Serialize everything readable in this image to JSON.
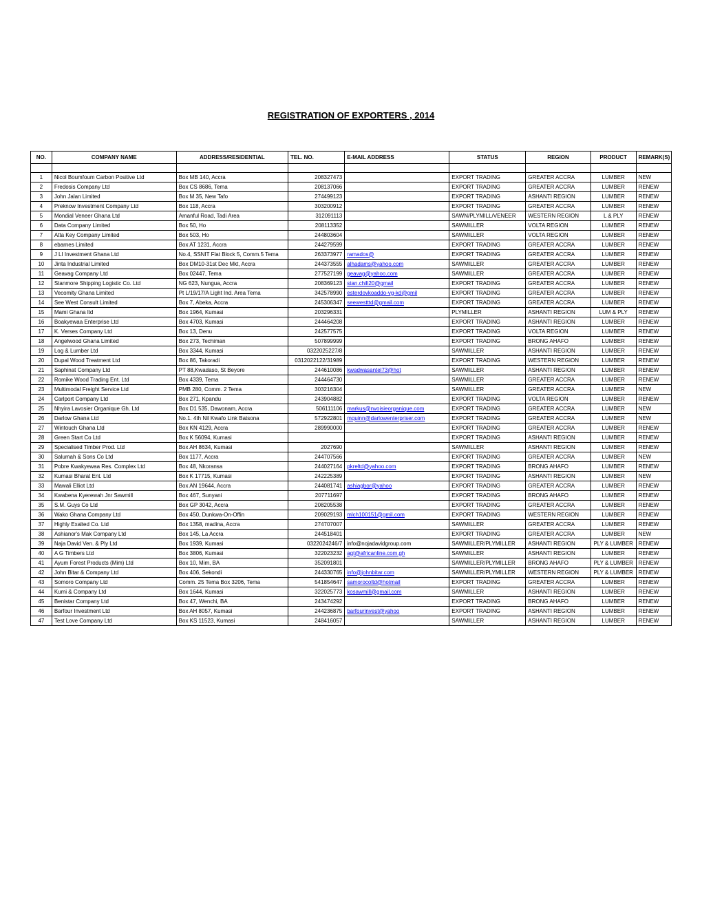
{
  "title": "REGISTRATION OF EXPORTERS , 2014",
  "columns": {
    "no": "NO.",
    "company": "COMPANY NAME",
    "address": "ADDRESS/RESIDENTIAL",
    "tel": "TEL. NO.",
    "email": "E-MAIL ADDRESS",
    "status": "STATUS",
    "region": "REGION",
    "product": "PRODUCT",
    "remarks": "REMARK(S)"
  },
  "rows": [
    {
      "no": "1",
      "company": "Nicol Boumfoum Carbon Positive Ltd",
      "address": "Box MB 140, Accra",
      "tel": "208327473",
      "email": "",
      "status": "EXPORT TRADING",
      "region": "GREATER ACCRA",
      "product": "LUMBER",
      "remarks": "NEW"
    },
    {
      "no": "2",
      "company": "Fredosis Company Ltd",
      "address": "Box CS 8686, Tema",
      "tel": "208137066",
      "email": "",
      "status": "EXPORT TRADING",
      "region": "GREATER ACCRA",
      "product": "LUMBER",
      "remarks": "RENEW"
    },
    {
      "no": "3",
      "company": "John Jalan Limited",
      "address": "Box M 35, New Tafo",
      "tel": "274499123",
      "email": "",
      "status": "EXPORT TRADING",
      "region": "ASHANTI REGION",
      "product": "LUMBER",
      "remarks": "RENEW"
    },
    {
      "no": "4",
      "company": "Preknow Investment Company Ltd",
      "address": "Box 118, Accra",
      "tel": "303200912",
      "email": "",
      "status": "EXPORT TRADING",
      "region": "GREATER ACCRA",
      "product": "LUMBER",
      "remarks": "RENEW"
    },
    {
      "no": "5",
      "company": "Mondial Veneer Ghana Ltd",
      "address": "Amanful Road, Tadi Area",
      "tel": "312091113",
      "email": "",
      "status": "SAWN/PLYMILL/VENEER",
      "region": "WESTERN REGION",
      "product": "L & PLY",
      "remarks": "RENEW"
    },
    {
      "no": "6",
      "company": "Data Company Limited",
      "address": "Box 50, Ho",
      "tel": "208113352",
      "email": "",
      "status": "SAWMILLER",
      "region": "VOLTA REGION",
      "product": "LUMBER",
      "remarks": "RENEW"
    },
    {
      "no": "7",
      "company": "Atta Key Company Limited",
      "address": "Box 503, Ho",
      "tel": "244803604",
      "email": "",
      "status": "SAWMILLER",
      "region": "VOLTA REGION",
      "product": "LUMBER",
      "remarks": "RENEW"
    },
    {
      "no": "8",
      "company": "ebarnes Limited",
      "address": "Box AT 1231, Accra",
      "tel": "244279599",
      "email": "",
      "status": "EXPORT TRADING",
      "region": "GREATER ACCRA",
      "product": "LUMBER",
      "remarks": "RENEW"
    },
    {
      "no": "9",
      "company": "J LI  Investment Ghana Ltd",
      "address": "No.4, SSNIT Flat Block 5, Comm.5 Tema",
      "tel": "263373977",
      "email": "ramados@",
      "email_link": true,
      "status": "EXPORT TRADING",
      "region": "GREATER ACCRA",
      "product": "LUMBER",
      "remarks": "RENEW"
    },
    {
      "no": "10",
      "company": "Jinta Industrial Limited",
      "address": "Box DM10-31st Dec Mkt, Accra",
      "tel": "244373555",
      "email": "alhadams@yahoo.com",
      "email_link": true,
      "status": "SAWMILLER",
      "region": "GREATER ACCRA",
      "product": "LUMBER",
      "remarks": "RENEW"
    },
    {
      "no": "11",
      "company": "Geavag Company Ltd",
      "address": "Box 02447, Tema",
      "tel": "277527199",
      "email": "geavag@yahoo.com",
      "email_link": true,
      "status": "SAWMILLER",
      "region": "GREATER ACCRA",
      "product": "LUMBER",
      "remarks": "RENEW"
    },
    {
      "no": "12",
      "company": "Stanmore Shipping Logistic Co. Ltd",
      "address": "NG 623, Nungua, Accra",
      "tel": "208369123",
      "email": "stan.chill20@gmail",
      "email_link": true,
      "status": "EXPORT TRADING",
      "region": "GREATER ACCRA",
      "product": "LUMBER",
      "remarks": "RENEW"
    },
    {
      "no": "13",
      "company": "Vecomity Ghana Limited",
      "address": "Pt L/19/17/A Light Ind. Area Tema",
      "tel": "342578990",
      "email": "esterdovkoaddo-vg-kd@gmil",
      "email_link": true,
      "status": "EXPORT TRADING",
      "region": "GREATER ACCRA",
      "product": "LUMBER",
      "remarks": "RENEW"
    },
    {
      "no": "14",
      "company": "See West Consult Limited",
      "address": "Box 7, Abeka, Accra",
      "tel": "245306347",
      "email": "seewestttd@gmail.com",
      "email_link": true,
      "status": "EXPORT TRADING",
      "region": "GREATER ACCRA",
      "product": "LUMBER",
      "remarks": "RENEW"
    },
    {
      "no": "15",
      "company": "Mami Ghana ltd",
      "address": "Box 1964, Kumasi",
      "tel": "203296331",
      "email": "",
      "status": "PLYMILLER",
      "region": "ASHANTI REGION",
      "product": "LUM & PLY",
      "remarks": "RENEW"
    },
    {
      "no": "16",
      "company": "Boakyewaa Enterprise Ltd",
      "address": "Box 4703, Kumasi",
      "tel": "244464208",
      "email": "",
      "status": "EXPORT TRADING",
      "region": "ASHANTI REGION",
      "product": "LUMBER",
      "remarks": "RENEW"
    },
    {
      "no": "17",
      "company": "K. Verses Company Ltd",
      "address": "Box 13, Denu",
      "tel": "242577575",
      "email": "",
      "status": "EXPORT TRADING",
      "region": "VOLTA REGION",
      "product": "LUMBER",
      "remarks": "RENEW"
    },
    {
      "no": "18",
      "company": "Angelwood Ghana Limited",
      "address": "Box 273, Techiman",
      "tel": "507899999",
      "email": "",
      "status": "EXPORT TRADING",
      "region": "BRONG AHAFO",
      "product": "LUMBER",
      "remarks": "RENEW"
    },
    {
      "no": "19",
      "company": "Log & Lumber Ltd",
      "address": "Box 3344, Kumasi",
      "tel": "0322025227/8",
      "email": "",
      "status": "SAWMILLER",
      "region": "ASHANTI REGION",
      "product": "LUMBER",
      "remarks": "RENEW"
    },
    {
      "no": "20",
      "company": "Dupal Wood Treatment Ltd",
      "address": "Box 86, Takoradi",
      "tel": "0312022122/31989",
      "email": "",
      "status": "EXPORT TRADING",
      "region": "WESTERN REGION",
      "product": "LUMBER",
      "remarks": "RENEW"
    },
    {
      "no": "21",
      "company": "Saphinat Company Ltd",
      "address": "PT 88,Kwadaso, St Beyore",
      "tel": "244610086",
      "email": "kwadwasantel73@hot",
      "email_link": true,
      "status": "SAWMILLER",
      "region": "ASHANTI REGION",
      "product": "LUMBER",
      "remarks": "RENEW"
    },
    {
      "no": "22",
      "company": "Romike Wood Trading Ent. Ltd",
      "address": "Box 4339, Tema",
      "tel": "244464730",
      "email": "",
      "status": "SAWMILLER",
      "region": "GREATER ACCRA",
      "product": "LUMBER",
      "remarks": "RENEW"
    },
    {
      "no": "23",
      "company": "Multimodal Freight Service Ltd",
      "address": "PMB 280, Comm. 2 Tema",
      "tel": "303216304",
      "email": "",
      "status": "SAWMILLER",
      "region": "GREATER ACCRA",
      "product": "LUMBER",
      "remarks": "NEW"
    },
    {
      "no": "24",
      "company": "Carlport Company Ltd",
      "address": "Box 271, Kpandu",
      "tel": "243904882",
      "email": "",
      "status": "EXPORT TRADING",
      "region": "VOLTA REGION",
      "product": "LUMBER",
      "remarks": "RENEW"
    },
    {
      "no": "25",
      "company": "Nhyira Lavosier Organique Gh. Ltd",
      "address": "Box D1 535, Dawonam, Accra",
      "tel": "506111106",
      "email": "markus@nvoisieorganique.com",
      "email_link": true,
      "status": "EXPORT TRADING",
      "region": "GREATER ACCRA",
      "product": "LUMBER",
      "remarks": "NEW"
    },
    {
      "no": "26",
      "company": "Darlow Ghana Ltd",
      "address": "No.1. 4th Nil Kwafo Link Batsona",
      "tel": "572922801",
      "email": "mquinn@darlowenterpriser.com",
      "email_link": true,
      "status": "EXPORT TRADING",
      "region": "GREATER ACCRA",
      "product": "LUMBER",
      "remarks": "NEW"
    },
    {
      "no": "27",
      "company": "Wintouch Ghana Ltd",
      "address": "Box KN 4129, Accra",
      "tel": "289990000",
      "email": "",
      "status": "EXPORT TRADING",
      "region": "GREATER ACCRA",
      "product": "LUMBER",
      "remarks": "RENEW"
    },
    {
      "no": "28",
      "company": "Green Start Co Ltd",
      "address": "Box K 56094, Kumasi",
      "tel": "",
      "email": "",
      "status": "EXPORT TRADING",
      "region": "ASHANTI REGION",
      "product": "LUMBER",
      "remarks": "RENEW"
    },
    {
      "no": "29",
      "company": "Specialised Timber Prod. Ltd",
      "address": "Box AH 8634, Kumasi",
      "tel": "2027690",
      "email": "",
      "status": "SAWMILLER",
      "region": "ASHANTI REGION",
      "product": "LUMBER",
      "remarks": "RENEW"
    },
    {
      "no": "30",
      "company": "Salumah & Sons Co Ltd",
      "address": "Box 1177, Accra",
      "tel": "244707566",
      "email": "",
      "status": "EXPORT TRADING",
      "region": "GREATER ACCRA",
      "product": "LUMBER",
      "remarks": "NEW"
    },
    {
      "no": "31",
      "company": "Pobre Kwakyewaa Res. Complex Ltd",
      "address": "Box 48, Nkoransa",
      "tel": "244027164",
      "email": "pkreltd@yahoo.com",
      "email_link": true,
      "status": "EXPORT TRADING",
      "region": "BRONG AHAFO",
      "product": "LUMBER",
      "remarks": "RENEW"
    },
    {
      "no": "32",
      "company": "Kumasi Bharat Ent. Ltd",
      "address": "Box K 17715, Kumasi",
      "tel": "242225389",
      "email": "",
      "status": "EXPORT TRADING",
      "region": "ASHANTI REGION",
      "product": "LUMBER",
      "remarks": "NEW"
    },
    {
      "no": "33",
      "company": "Mawali Elliot Ltd",
      "address": "Box AN 19644, Accra",
      "tel": "244081741",
      "email": "ashiagbor@yahoo",
      "email_link": true,
      "status": "EXPORT TRADING",
      "region": "GREATER ACCRA",
      "product": "LUMBER",
      "remarks": "RENEW"
    },
    {
      "no": "34",
      "company": "Kwabena Kyerewah Jnr Sawmill",
      "address": "Box 467, Sunyani",
      "tel": "207711697",
      "email": "",
      "status": "EXPORT TRADING",
      "region": "BRONG AHAFO",
      "product": "LUMBER",
      "remarks": "RENEW"
    },
    {
      "no": "35",
      "company": "S.M. Guys Co Ltd",
      "address": "Box GP 3042, Accra",
      "tel": "208205538",
      "email": "",
      "status": "EXPORT TRADING",
      "region": "GREATER ACCRA",
      "product": "LUMBER",
      "remarks": "RENEW"
    },
    {
      "no": "36",
      "company": "Wako Ghana Company Ltd",
      "address": "Box 450, Dunkwa-On-Offin",
      "tel": "209029193",
      "email": "mlch100151@gmil.com",
      "email_link": true,
      "status": "EXPORT TRADING",
      "region": "WESTERN REGION",
      "product": "LUMBER",
      "remarks": "RENEW"
    },
    {
      "no": "37",
      "company": "Highly Exalted Co. Ltd",
      "address": "Box 1358, madina, Accra",
      "tel": "274707007",
      "email": "",
      "status": "SAWMILLER",
      "region": "GREATER ACCRA",
      "product": "LUMBER",
      "remarks": "RENEW"
    },
    {
      "no": "38",
      "company": "Ashianor's Mak Company Ltd",
      "address": "Box 145, La Accra",
      "tel": "244518401",
      "email": "",
      "status": "EXPORT TRADING",
      "region": "GREATER ACCRA",
      "product": "LUMBER",
      "remarks": "NEW"
    },
    {
      "no": "39",
      "company": "Naja David Ven. & Ply Ltd",
      "address": "Box 1939, Kumasi",
      "tel": "0322024246/7",
      "email": "info@nojadavidgroup.com",
      "status": "SAWMILLER/PLYMILLER",
      "region": "ASHANTI REGION",
      "product": "PLY & LUMBER",
      "remarks": "RENEW"
    },
    {
      "no": "40",
      "company": "A G Timbers Ltd",
      "address": "Box 3806, Kumasi",
      "tel": "322023232",
      "email": "agt@africanline.com.gh",
      "email_link": true,
      "status": "SAWMILLER",
      "region": "ASHANTI REGION",
      "product": "LUMBER",
      "remarks": "RENEW"
    },
    {
      "no": "41",
      "company": "Ayum Forest Products (Mim) Ltd",
      "address": "Box 10, Mim, BA",
      "tel": "352091801",
      "email": "",
      "status": "SAWMILLER/PLYMILLER",
      "region": "BRONG AHAFO",
      "product": "PLY & LUMBER",
      "remarks": "RENEW"
    },
    {
      "no": "42",
      "company": "John Bitar & Company Ltd",
      "address": "Box 406, Sekondi",
      "tel": "244330765",
      "email": "info@johnbitar.com",
      "email_link": true,
      "status": "SAWMILLER/PLYMILLER",
      "region": "WESTERN REGION",
      "product": "PLY & LUMBER",
      "remarks": "RENEW"
    },
    {
      "no": "43",
      "company": "Somoro Company Ltd",
      "address": "Comm. 25 Tema Box 3206, Tema",
      "tel": "541854647",
      "email": "samorocoltd@hotmail",
      "email_link": true,
      "status": "EXPORT TRADING",
      "region": "GREATER ACCRA",
      "product": "LUMBER",
      "remarks": "RENEW"
    },
    {
      "no": "44",
      "company": "Kumi & Company Ltd",
      "address": "Box 1644, Kumasi",
      "tel": "322025773",
      "email": "kosawmill@gmail.com",
      "email_link": true,
      "status": "SAWMILLER",
      "region": "ASHANTI REGION",
      "product": "LUMBER",
      "remarks": "RENEW"
    },
    {
      "no": "45",
      "company": "Benistar Company Ltd",
      "address": "Box 47, Wenchi, BA",
      "tel": "243474292",
      "email": "",
      "status": "EXPORT TRADING",
      "region": "BRONG AHAFO",
      "product": "LUMBER",
      "remarks": "RENEW"
    },
    {
      "no": "46",
      "company": "Barfour Investment Ltd",
      "address": "Box AH 8057, Kumasi",
      "tel": "244236875",
      "email": "barfourinvest@yahoo",
      "email_link": true,
      "status": "EXPORT TRADING",
      "region": "ASHANTI REGION",
      "product": "LUMBER",
      "remarks": "RENEW"
    },
    {
      "no": "47",
      "company": "Test Love Company Ltd",
      "address": "Box KS 11523, Kumasi",
      "tel": "248416057",
      "email": "",
      "status": "SAWMILLER",
      "region": "ASHANTI REGION",
      "product": "LUMBER",
      "remarks": "RENEW"
    }
  ]
}
